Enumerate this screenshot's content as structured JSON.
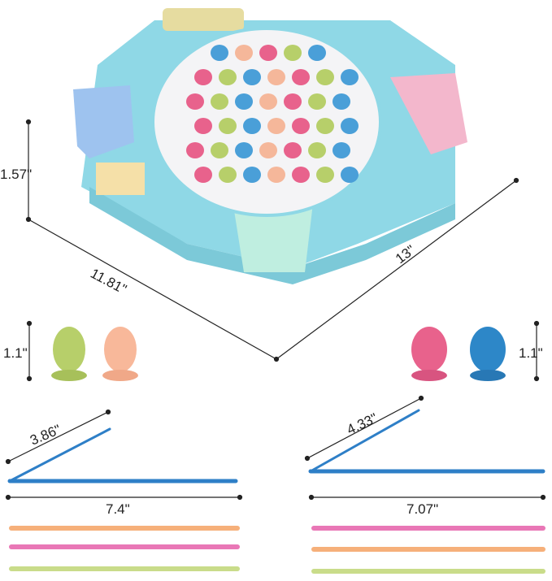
{
  "product": {
    "board": {
      "height_label": "1.57\"",
      "width_label": "11.81\"",
      "depth_label": "13\""
    },
    "fish": {
      "left_height_label": "1.1\"",
      "right_height_label": "1.1\""
    },
    "rods": {
      "left_arm_label": "3.86\"",
      "left_length_label": "7.4\"",
      "right_arm_label": "4.33\"",
      "right_length_label": "7.07\""
    },
    "colors": {
      "base": "#8fd8e6",
      "board": "#f4f4f6",
      "blue_basket": "#9ec3ef",
      "pink_basket": "#f3b7cc",
      "mint_basket": "#bfeee0",
      "yellow_top": "#e6dca0",
      "rod_blue": "#2e7fc7",
      "rod_orange": "#f6b07a",
      "rod_pink": "#e977b6",
      "rod_green": "#c9dc8a"
    }
  }
}
